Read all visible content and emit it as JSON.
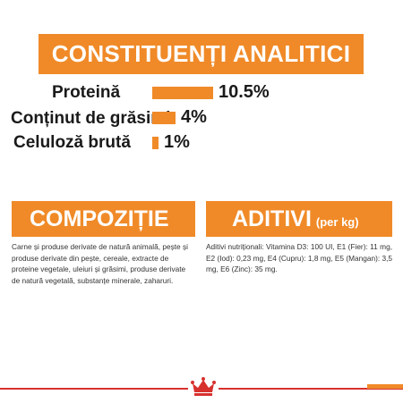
{
  "title": "CONSTITUENȚI ANALITICI",
  "constituents": [
    {
      "label": "Proteină",
      "value": "10.5%",
      "percent": 10.5
    },
    {
      "label": "Conținut de grăsimi",
      "value": "4%",
      "percent": 4
    },
    {
      "label": "Celuloză brută",
      "value": "1%",
      "percent": 1
    }
  ],
  "compozitie": {
    "title": "COMPOZIȚIE",
    "text": "Carne și produse derivate de natură animală, pește și produse derivate din pește, cereale, extracte de proteine vegetale, uleiuri și grăsimi, produse derivate de natură vegetală, substanțe minerale, zaharuri."
  },
  "aditivi": {
    "title": "ADITIVI",
    "suffix": "(per kg)",
    "text": "Aditivi nutriționali: Vitamina D3: 100 UI, E1 (Fier): 11 mg, E2 (Iod): 0,23 mg, E4 (Cupru): 1,8 mg, E5 (Mangan): 3,5 mg, E6 (Zinc): 35 mg."
  },
  "colors": {
    "accent": "#f08a28",
    "brand_red": "#d7312e"
  },
  "icons": {
    "logo": "crown-icon"
  }
}
